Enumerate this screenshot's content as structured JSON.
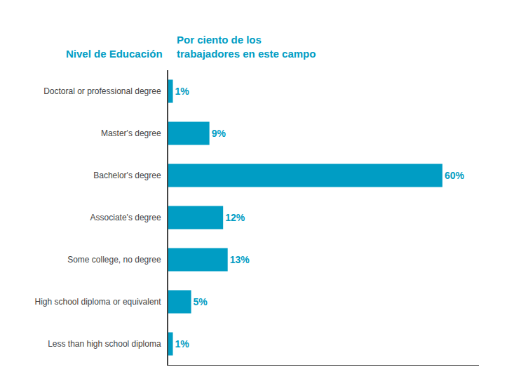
{
  "chart_data": {
    "type": "bar",
    "orientation": "horizontal",
    "ylabel": "Nivel de Educación",
    "xlabel": "Por ciento de los\ntrabajadores en este campo",
    "categories": [
      "Doctoral or professional degree",
      "Master's degree",
      "Bachelor's degree",
      "Associate's degree",
      "Some college, no degree",
      "High school diploma or equivalent",
      "Less than high school diploma"
    ],
    "values": [
      1,
      9,
      60,
      12,
      13,
      5,
      1
    ],
    "value_labels": [
      "1%",
      "9%",
      "60%",
      "12%",
      "13%",
      "5%",
      "1%"
    ],
    "data_labels": true,
    "color": "#009DC4",
    "xlim": [
      0,
      68
    ],
    "tick_labels": "y",
    "grid": false
  }
}
